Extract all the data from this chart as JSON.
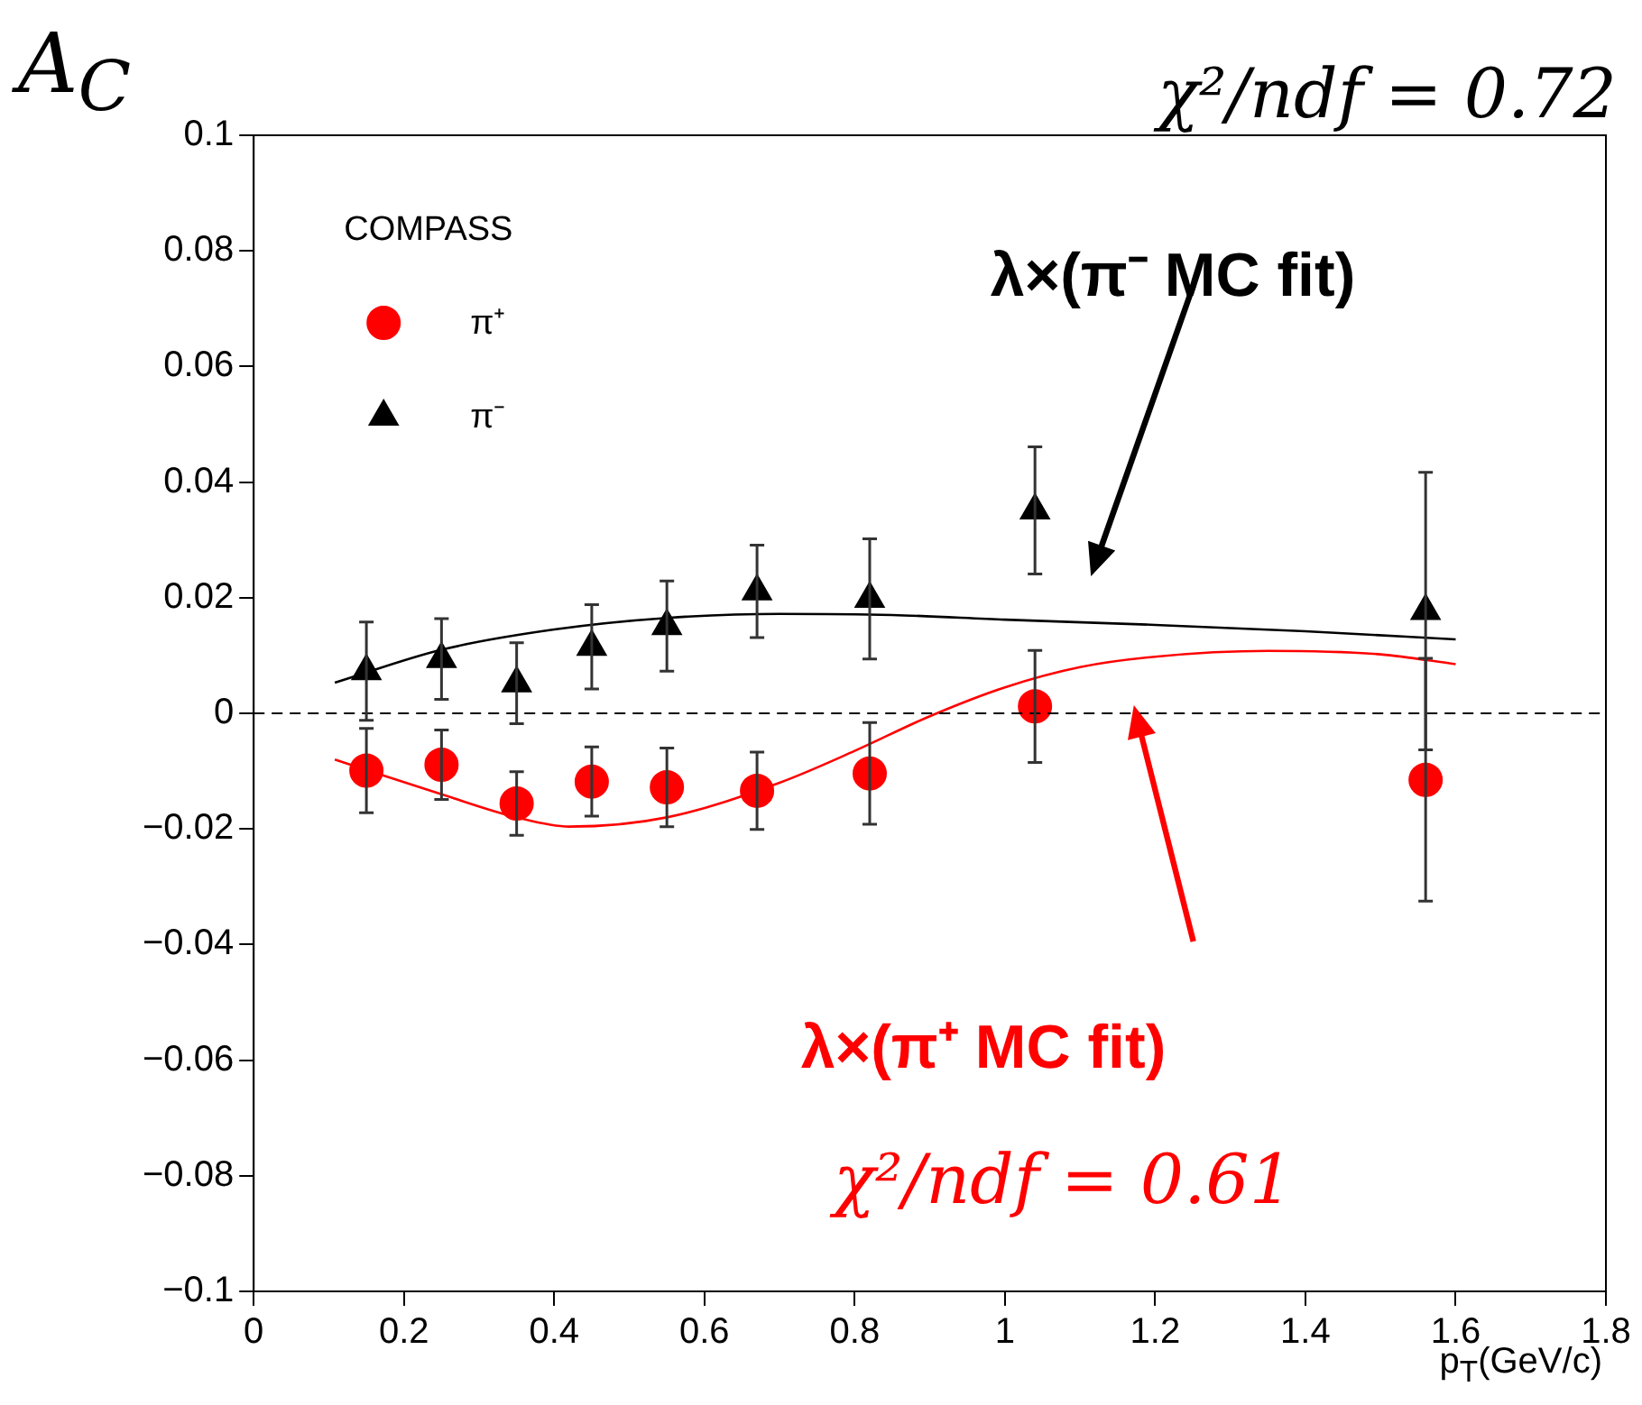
{
  "chart_data": {
    "type": "scatter",
    "xlabel": "p$_{T}$(GeV/c)",
    "ylabel": "A$_{C}$",
    "legend_title": "COMPASS",
    "legend": "top left",
    "grid": false,
    "xlim": [
      0,
      1.8
    ],
    "xticks": [
      0,
      0.2,
      0.4,
      0.6,
      0.8,
      1,
      1.2,
      1.4,
      1.6,
      1.8
    ],
    "ylim": [
      -0.1,
      0.1
    ],
    "yticks": [
      {
        "value": -0.1,
        "label": "−0.1"
      },
      {
        "value": -0.08,
        "label": "−0.08"
      },
      {
        "value": -0.06,
        "label": "−0.06"
      },
      {
        "value": -0.04,
        "label": "−0.04"
      },
      {
        "value": -0.02,
        "label": "−0.02"
      },
      0,
      0.02,
      0.04,
      0.06,
      0.08,
      0.1
    ],
    "series": [
      {
        "name": "π⁺",
        "marker": "circle",
        "color": "#ff0000",
        "x": [
          0.15,
          0.25,
          0.35,
          0.45,
          0.55,
          0.67,
          0.82,
          1.04,
          1.56
        ],
        "values": [
          -0.0099,
          -0.0089,
          -0.0156,
          -0.0118,
          -0.0128,
          -0.0134,
          -0.0104,
          0.0012,
          -0.0115
        ],
        "errors": [
          0.0073,
          0.006,
          0.0055,
          0.006,
          0.0068,
          0.0067,
          0.0088,
          0.0097,
          0.021
        ]
      },
      {
        "name": "π⁻",
        "marker": "triangle",
        "color": "#000000",
        "x": [
          0.15,
          0.25,
          0.35,
          0.45,
          0.55,
          0.67,
          0.82,
          1.04,
          1.56
        ],
        "values": [
          0.0073,
          0.0094,
          0.0052,
          0.0115,
          0.0151,
          0.0211,
          0.0198,
          0.0351,
          0.0177
        ],
        "errors": [
          0.0085,
          0.007,
          0.007,
          0.0073,
          0.0078,
          0.008,
          0.0104,
          0.011,
          0.024
        ]
      },
      {
        "type": "line",
        "marker": "none",
        "color": "#000000",
        "x": [
          0.108,
          0.25,
          0.4,
          0.55,
          0.7,
          0.85,
          1.0,
          1.2,
          1.4,
          1.6
        ],
        "values": [
          0.0053,
          0.011,
          0.0145,
          0.0165,
          0.0172,
          0.017,
          0.0162,
          0.0153,
          0.0142,
          0.0128
        ]
      },
      {
        "type": "line",
        "marker": "none",
        "color": "#ff0000",
        "x": [
          0.108,
          0.25,
          0.35,
          0.42,
          0.55,
          0.7,
          0.8,
          0.9,
          1.0,
          1.1,
          1.2,
          1.35,
          1.5,
          1.6
        ],
        "values": [
          -0.008,
          -0.014,
          -0.018,
          -0.0196,
          -0.018,
          -0.012,
          -0.0065,
          -0.0005,
          0.0045,
          0.008,
          0.0098,
          0.0108,
          0.0102,
          0.0085
        ]
      }
    ],
    "ref_lines": [
      {
        "axis": "y",
        "value": 0,
        "line_style": "dashed",
        "color": "#000000"
      }
    ],
    "annotations": [
      "λ×(π⁻ MC fit)",
      "λ×(π⁺ MC fit)",
      "χ²/ndf = 0.72",
      "χ²/ndf = 0.61"
    ]
  }
}
